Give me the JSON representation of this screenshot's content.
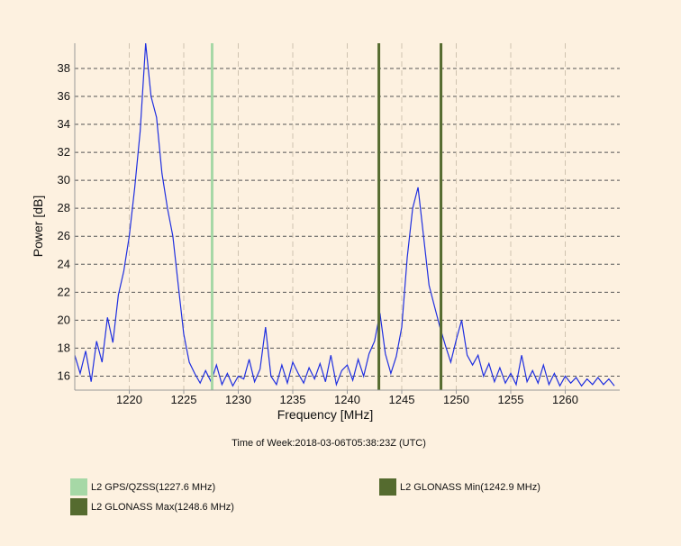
{
  "chart_data": {
    "type": "line",
    "xlabel": "Frequency [MHz]",
    "ylabel": "Power [dB]",
    "xlim": [
      1215,
      1265
    ],
    "ylim": [
      15,
      39.8
    ],
    "x_ticks": [
      1220,
      1225,
      1230,
      1235,
      1240,
      1245,
      1250,
      1255,
      1260
    ],
    "y_ticks": [
      16,
      18,
      20,
      22,
      24,
      26,
      28,
      30,
      32,
      34,
      36,
      38
    ],
    "grid": {
      "x": "dashed",
      "y": "dashed"
    },
    "series": [
      {
        "color": "#1f2fe0",
        "x": [
          1215.0,
          1215.5,
          1216.0,
          1216.5,
          1217.0,
          1217.5,
          1218.0,
          1218.5,
          1219.0,
          1219.5,
          1220.0,
          1220.5,
          1221.0,
          1221.5,
          1222.0,
          1222.5,
          1223.0,
          1223.5,
          1224.0,
          1224.5,
          1225.0,
          1225.5,
          1226.0,
          1226.5,
          1227.0,
          1227.5,
          1228.0,
          1228.5,
          1229.0,
          1229.5,
          1230.0,
          1230.5,
          1231.0,
          1231.5,
          1232.0,
          1232.5,
          1233.0,
          1233.5,
          1234.0,
          1234.5,
          1235.0,
          1235.5,
          1236.0,
          1236.5,
          1237.0,
          1237.5,
          1238.0,
          1238.5,
          1239.0,
          1239.5,
          1240.0,
          1240.5,
          1241.0,
          1241.5,
          1242.0,
          1242.5,
          1243.0,
          1243.5,
          1244.0,
          1244.5,
          1245.0,
          1245.5,
          1246.0,
          1246.5,
          1247.0,
          1247.5,
          1248.0,
          1248.5,
          1249.0,
          1249.5,
          1250.0,
          1250.5,
          1251.0,
          1251.5,
          1252.0,
          1252.5,
          1253.0,
          1253.5,
          1254.0,
          1254.5,
          1255.0,
          1255.5,
          1256.0,
          1256.5,
          1257.0,
          1257.5,
          1258.0,
          1258.5,
          1259.0,
          1259.5,
          1260.0,
          1260.5,
          1261.0,
          1261.5,
          1262.0,
          1262.5,
          1263.0,
          1263.5,
          1264.0,
          1264.5
        ],
        "y": [
          17.5,
          16.2,
          17.8,
          15.6,
          18.5,
          17.0,
          20.2,
          18.4,
          21.8,
          23.5,
          26.0,
          29.5,
          33.5,
          39.8,
          36.0,
          34.5,
          30.5,
          28.0,
          26.0,
          22.5,
          19.0,
          17.0,
          16.2,
          15.5,
          16.4,
          15.6,
          16.8,
          15.4,
          16.2,
          15.3,
          16.0,
          15.8,
          17.2,
          15.6,
          16.5,
          19.5,
          16.0,
          15.4,
          16.8,
          15.5,
          17.0,
          16.2,
          15.5,
          16.6,
          15.8,
          16.9,
          15.6,
          17.5,
          15.4,
          16.4,
          16.8,
          15.7,
          17.2,
          16.0,
          17.6,
          18.5,
          20.5,
          17.6,
          16.2,
          17.4,
          19.5,
          24.5,
          28.0,
          29.5,
          26.0,
          22.5,
          21.0,
          19.5,
          18.2,
          17.0,
          18.6,
          20.0,
          17.5,
          16.8,
          17.5,
          16.0,
          16.9,
          15.6,
          16.6,
          15.5,
          16.2,
          15.4,
          17.5,
          15.6,
          16.4,
          15.5,
          16.8,
          15.4,
          16.2,
          15.3,
          16.0,
          15.5,
          15.9,
          15.3,
          15.8,
          15.4,
          15.9,
          15.4,
          15.8,
          15.3
        ]
      }
    ],
    "markers": [
      {
        "label": "L2 GPS/QZSS(1227.6 MHz)",
        "freq": 1227.6,
        "color": "#a6d8a6"
      },
      {
        "label": "L2 GLONASS Min(1242.9 MHz)",
        "freq": 1242.9,
        "color": "#556b2f"
      },
      {
        "label": "L2 GLONASS Max(1248.6 MHz)",
        "freq": 1248.6,
        "color": "#556b2f"
      }
    ]
  },
  "caption": {
    "label": "Time of Week:",
    "value": "2018-03-06T05:38:23Z (UTC)"
  },
  "legend": [
    {
      "label": "L2 GPS/QZSS(1227.6 MHz)",
      "color": "#a6d8a6"
    },
    {
      "label": "L2 GLONASS Min(1242.9 MHz)",
      "color": "#556b2f"
    },
    {
      "label": "L2 GLONASS Max(1248.6 MHz)",
      "color": "#556b2f"
    }
  ]
}
